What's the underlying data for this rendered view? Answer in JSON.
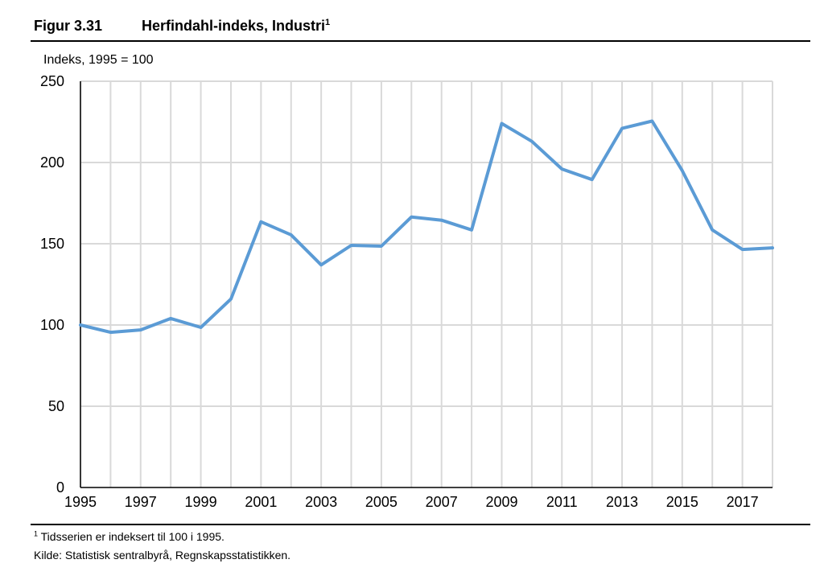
{
  "figure": {
    "number": "Figur 3.31",
    "title": "Herfindahl-indeks, Industri",
    "title_sup": "1"
  },
  "footnote": {
    "sup": "1",
    "text": " Tidsserien er indeksert til 100 i 1995."
  },
  "source": "Kilde: Statistisk sentralbyrå, Regnskapsstatistikken.",
  "chart_data": {
    "type": "line",
    "title": "Herfindahl-indeks, Industri",
    "ylabel": "Indeks, 1995 = 100",
    "xlabel": "",
    "x": [
      1995,
      1996,
      1997,
      1998,
      1999,
      2000,
      2001,
      2002,
      2003,
      2004,
      2005,
      2006,
      2007,
      2008,
      2009,
      2010,
      2011,
      2012,
      2013,
      2014,
      2015,
      2016,
      2017,
      2018
    ],
    "series": [
      {
        "color": "#5B9BD5",
        "values": [
          100,
          95.5,
          97,
          104,
          98.5,
          116,
          163.5,
          155.5,
          137,
          149,
          148.5,
          166.5,
          164.5,
          158.5,
          224,
          213,
          196,
          189.5,
          221,
          225.5,
          195,
          158.5,
          146.5,
          147.5
        ]
      }
    ],
    "ylim": [
      0,
      250
    ],
    "yticks": [
      0,
      50,
      100,
      150,
      200,
      250
    ],
    "xlim": [
      1995,
      2018
    ],
    "xticks": [
      1995,
      1997,
      1999,
      2001,
      2003,
      2005,
      2007,
      2009,
      2011,
      2013,
      2015,
      2017
    ],
    "grid": true,
    "legend": "none",
    "grid_color": "#D9D9D9"
  }
}
